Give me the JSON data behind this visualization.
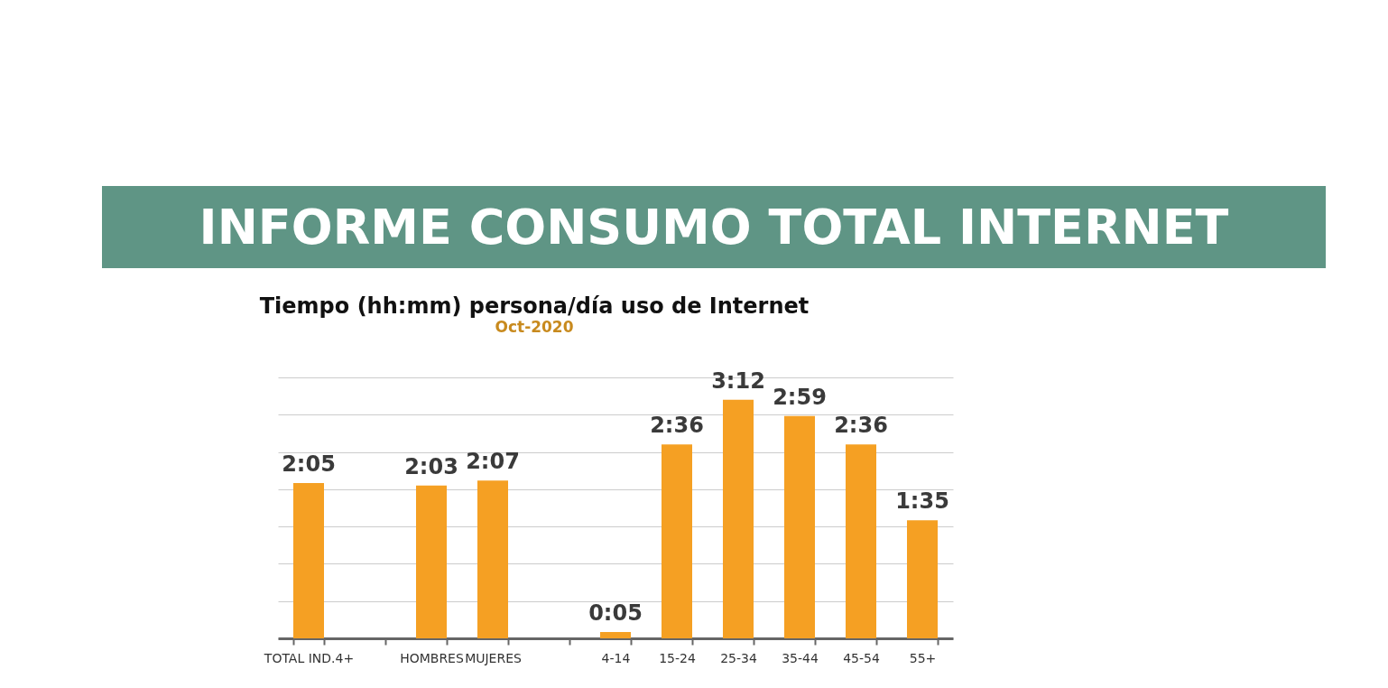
{
  "chart_data": {
    "type": "bar",
    "title": "Tiempo (hh:mm) persona/día uso de Internet",
    "subtitle": "Oct-2020",
    "annotations": [
      "INFORME CONSUMO TOTAL INTERNET"
    ],
    "categories": [
      "TOTAL IND.4+",
      null,
      "HOMBRES",
      "MUJERES",
      null,
      "4-14",
      "15-24",
      "25-34",
      "35-44",
      "45-54",
      "55+"
    ],
    "values": [
      125,
      null,
      123,
      127,
      null,
      5,
      156,
      192,
      179,
      156,
      95
    ],
    "value_labels": [
      "2:05",
      null,
      "2:03",
      "2:07",
      null,
      "0:05",
      "2:36",
      "3:12",
      "2:59",
      "2:36",
      "1:35"
    ],
    "color": "#f5a023",
    "ylim": [
      0,
      210
    ],
    "yticks": [
      {
        "value": 0,
        "label": null
      },
      {
        "value": 30,
        "label": null
      },
      {
        "value": 60,
        "label": null
      },
      {
        "value": 90,
        "label": null
      },
      {
        "value": 120,
        "label": null
      },
      {
        "value": 150,
        "label": null
      },
      {
        "value": 180,
        "label": null
      },
      {
        "value": 210,
        "label": null
      }
    ],
    "grid": "y",
    "tick_labels": "x"
  }
}
